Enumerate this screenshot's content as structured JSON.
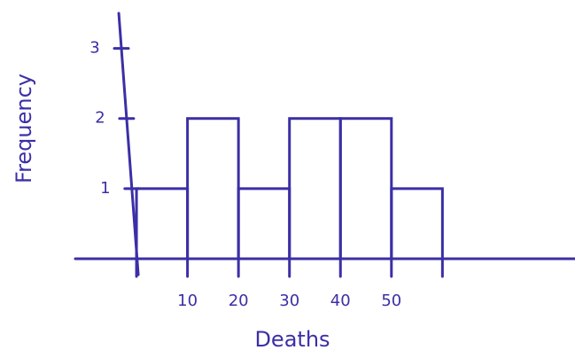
{
  "chart_data": {
    "type": "histogram",
    "xlabel": "Deaths",
    "ylabel": "Frequency",
    "bins": [
      0,
      10,
      20,
      30,
      40,
      50,
      60
    ],
    "values": [
      1,
      2,
      1,
      2,
      2,
      1
    ],
    "color": "#3b2fa6",
    "xlim": [
      -12,
      86
    ],
    "xticks": [
      10,
      20,
      30,
      40,
      50
    ],
    "ylim": [
      0,
      3.5
    ],
    "yticks": [
      1,
      2,
      3
    ]
  }
}
